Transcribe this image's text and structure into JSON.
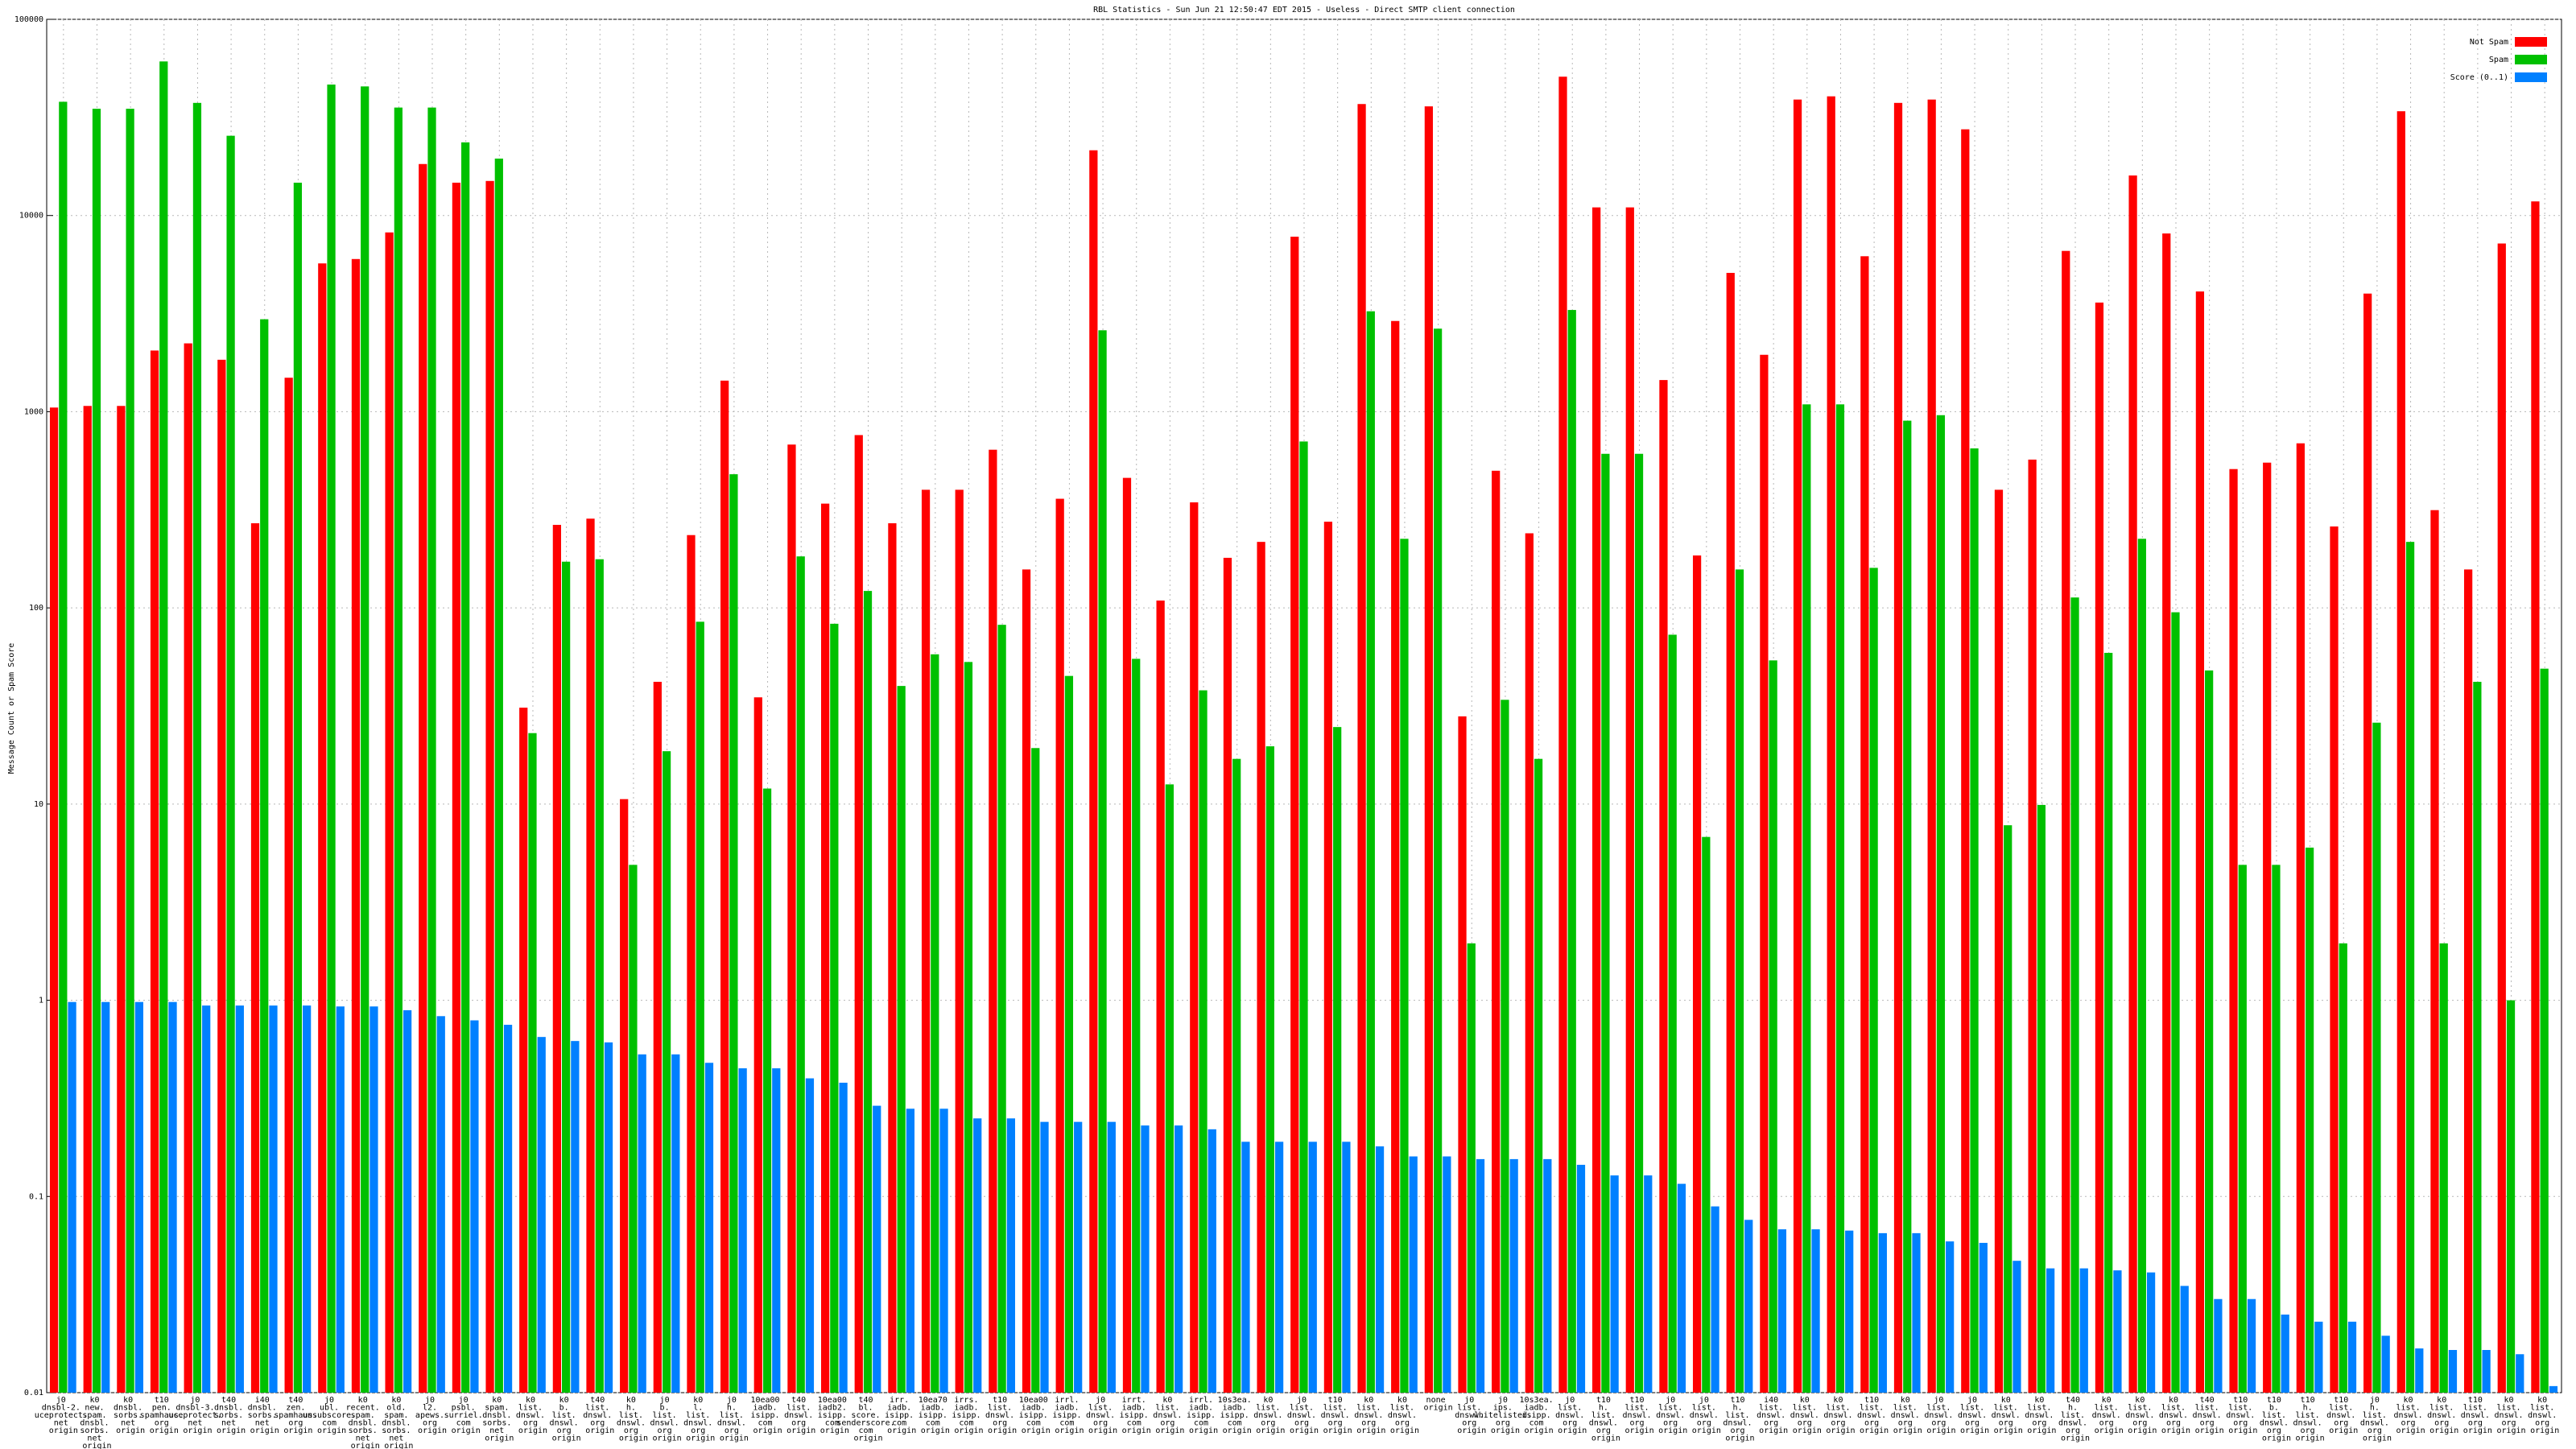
{
  "chart_data": {
    "type": "bar",
    "title": "RBL Statistics - Sun Jun 21 12:50:47 EDT 2015 - Useless - Direct SMTP client connection",
    "y_label": "Message Count or Spam Score",
    "log_scale": true,
    "grid": true,
    "legend": "upper right",
    "ylim": [
      0.01,
      100000
    ],
    "yticks": [
      0.01,
      0.1,
      1,
      10,
      100,
      1000,
      10000,
      100000
    ],
    "categories": [
      "j0 dnsbl-2. uceprotect. net origin",
      "k0 new. spam. dnsbl. sorbs. net origin",
      "k0 dnsbl. sorbs. net origin",
      "t10 pen. spamhaus. org origin",
      "j0 dnsbl-3. uceprotect. net origin",
      "t40 dnsbl. sorbs. net origin",
      "i40 dnsbl. sorbs. net origin",
      "t40 zen. spamhaus. org origin",
      "j0 ubl. unsubscore. com origin",
      "k0 recent. spam. dnsbl. sorbs. net origin",
      "k0 old. spam. dnsbl. sorbs. net origin",
      "j0 l2. apews. org origin",
      "j0 psbl. surriel. com origin",
      "k0 spam. dnsbl. sorbs. net origin",
      "k0 list. dnswl. org origin",
      "k0 b. list. dnswl. org origin",
      "t40 list. dnswl. org origin",
      "k0 h. list. dnswl. org origin",
      "j0 b. list. dnswl. org origin",
      "k0 l. list. dnswl. org origin",
      "j0 h. list. dnswl. org origin",
      "10ea00 iadb. isipp. com origin",
      "t40 list. dnswl. org origin",
      "10ea00 iadb2. isipp. com origin",
      "t40 bl. score. senderscore. com origin",
      "irr. iadb. isipp. com origin",
      "10ea70 iadb. isipp. com origin",
      "irrs. iadb. isipp. com origin",
      "t10 list. dnswl. org origin",
      "10ea00 iadb. isipp. com origin",
      "irrl. iadb. isipp. com origin",
      "j0 list. dnswl. org origin",
      "irrt. iadb. isipp. com origin",
      "k0 list. dnswl. org origin",
      "irrl. iadb. isipp. com origin",
      "10s3ea. iadb. isipp. com origin",
      "k0 list. dnswl. org origin",
      "j0 list. dnswl. org origin",
      "t10 list. dnswl. org origin",
      "k0 list. dnswl. org origin",
      "k0 list. dnswl. org origin",
      "none origin",
      "j0 list. dnswl. org origin",
      "j0 ips. whitelisted. org origin",
      "10s3ea. iadb. isipp. com origin",
      "j0 list. dnswl. org origin",
      "t10 h. list. dnswl. org origin",
      "t10 list. dnswl. org origin",
      "j0 list. dnswl. org origin",
      "j0 list. dnswl. org origin",
      "t10 h. list. dnswl. org origin",
      "i40 list. dnswl. org origin",
      "k0 list. dnswl. org origin",
      "k0 list. dnswl. org origin",
      "t10 list. dnswl. org origin",
      "k0 list. dnswl. org origin",
      "j0 list. dnswl. org origin",
      "j0 list. dnswl. org origin",
      "k0 list. dnswl. org origin",
      "k0 list. dnswl. org origin",
      "t40 h. list. dnswl. org origin",
      "k0 list. dnswl. org origin",
      "k0 list. dnswl. org origin",
      "k0 list. dnswl. org origin",
      "t40 list. dnswl. org origin",
      "t10 list. dnswl. org origin",
      "t10 b. list. dnswl. org origin",
      "t10 h. list. dnswl. org origin",
      "t10 list. dnswl. org origin",
      "j0 h. list. dnswl. org origin",
      "k0 list. dnswl. org origin",
      "k0 list. dnswl. org origin",
      "t10 list. dnswl. org origin",
      "k0 list. dnswl. org origin",
      "k0 list. dnswl. org origin"
    ],
    "series": [
      {
        "name": "Not Spam",
        "color": "#ff0000",
        "values": [
          1050,
          1070,
          1070,
          2050,
          2230,
          1840,
          270,
          1490,
          5700,
          6000,
          8200,
          18300,
          14700,
          15000,
          31,
          265,
          285,
          10.6,
          42,
          235,
          1440,
          35,
          680,
          340,
          760,
          270,
          400,
          400,
          640,
          157,
          360,
          21500,
          460,
          109,
          345,
          180,
          217,
          7800,
          275,
          37000,
          2900,
          36000,
          28,
          500,
          240,
          51000,
          11000,
          11000,
          1450,
          185,
          5100,
          1950,
          39000,
          40500,
          6200,
          37500,
          39000,
          27500,
          400,
          570,
          6600,
          3600,
          16000,
          8100,
          4100,
          510,
          550,
          690,
          260,
          4000,
          34000,
          315,
          157,
          7200,
          11800
        ]
      },
      {
        "name": "Spam",
        "color": "#00c000",
        "values": [
          38000,
          35000,
          35000,
          61000,
          37500,
          25500,
          2960,
          14700,
          46500,
          45500,
          35500,
          35500,
          23600,
          19500,
          23,
          172,
          177,
          4.9,
          18.6,
          85,
          480,
          12,
          183,
          83,
          122,
          40,
          58,
          53,
          82,
          19.3,
          45,
          2600,
          55,
          12.6,
          38,
          17,
          19.7,
          705,
          24.7,
          3250,
          225,
          2650,
          1.95,
          34,
          17,
          3300,
          610,
          610,
          73,
          6.8,
          157,
          54,
          1090,
          1090,
          160,
          900,
          960,
          650,
          7.8,
          9.9,
          113,
          59,
          225,
          95,
          48,
          4.9,
          4.9,
          6.0,
          1.95,
          26,
          217,
          1.95,
          42,
          1.0,
          49
        ]
      },
      {
        "name": "Score (0..1)",
        "color": "#0080ff",
        "values": [
          0.98,
          0.98,
          0.98,
          0.98,
          0.94,
          0.94,
          0.94,
          0.94,
          0.93,
          0.93,
          0.89,
          0.83,
          0.79,
          0.75,
          0.65,
          0.62,
          0.61,
          0.53,
          0.53,
          0.48,
          0.45,
          0.45,
          0.4,
          0.38,
          0.29,
          0.28,
          0.28,
          0.25,
          0.25,
          0.24,
          0.24,
          0.24,
          0.23,
          0.23,
          0.22,
          0.19,
          0.19,
          0.19,
          0.19,
          0.18,
          0.16,
          0.16,
          0.155,
          0.155,
          0.155,
          0.145,
          0.128,
          0.128,
          0.116,
          0.089,
          0.076,
          0.068,
          0.068,
          0.067,
          0.065,
          0.065,
          0.059,
          0.058,
          0.047,
          0.043,
          0.043,
          0.042,
          0.041,
          0.035,
          0.03,
          0.03,
          0.025,
          0.023,
          0.023,
          0.0195,
          0.0168,
          0.0165,
          0.0165,
          0.0157,
          0.0108
        ]
      }
    ]
  }
}
